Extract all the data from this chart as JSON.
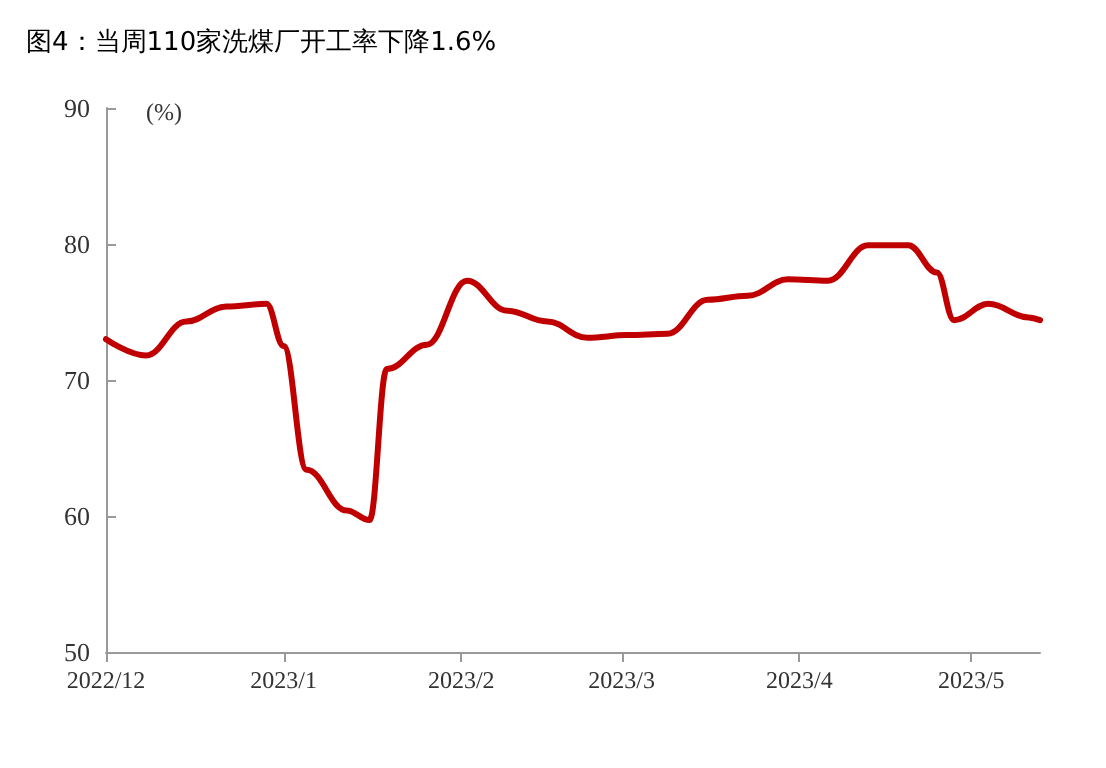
{
  "chart_data": {
    "type": "line",
    "title": "图4：当周110家洗煤厂开工率下降1.6%",
    "ylabel": "(%)",
    "x": [
      "2022-12-01",
      "2022-12-08",
      "2022-12-15",
      "2022-12-22",
      "2022-12-29",
      "2023-01-01",
      "2023-01-05",
      "2023-01-12",
      "2023-01-16",
      "2023-01-19",
      "2023-01-26",
      "2023-02-02",
      "2023-02-09",
      "2023-02-16",
      "2023-02-23",
      "2023-03-02",
      "2023-03-09",
      "2023-03-16",
      "2023-03-23",
      "2023-03-30",
      "2023-04-06",
      "2023-04-13",
      "2023-04-20",
      "2023-04-25",
      "2023-04-28",
      "2023-05-04",
      "2023-05-11",
      "2023-05-13"
    ],
    "series": [
      {
        "color": "#c00000",
        "values": [
          73.0,
          71.8,
          74.3,
          75.4,
          75.6,
          72.5,
          63.4,
          60.4,
          59.7,
          70.8,
          72.6,
          77.3,
          75.1,
          74.3,
          73.1,
          73.3,
          73.4,
          75.9,
          76.2,
          77.4,
          77.3,
          79.9,
          79.9,
          77.9,
          74.4,
          75.6,
          74.6,
          74.4
        ]
      }
    ],
    "xlim": [
      "2022-12-01",
      "2023-05-13"
    ],
    "xticks": [
      {
        "value": "2022-12",
        "label": "2022/12"
      },
      {
        "value": "2023-01",
        "label": "2023/1"
      },
      {
        "value": "2023-02",
        "label": "2023/2"
      },
      {
        "value": "2023-03",
        "label": "2023/3"
      },
      {
        "value": "2023-04",
        "label": "2023/4"
      },
      {
        "value": "2023-05",
        "label": "2023/5"
      }
    ],
    "ylim": [
      50,
      90
    ],
    "yticks": [
      50,
      60,
      70,
      80,
      90
    ],
    "grid": false,
    "marker": "none",
    "line_style": "solid"
  }
}
